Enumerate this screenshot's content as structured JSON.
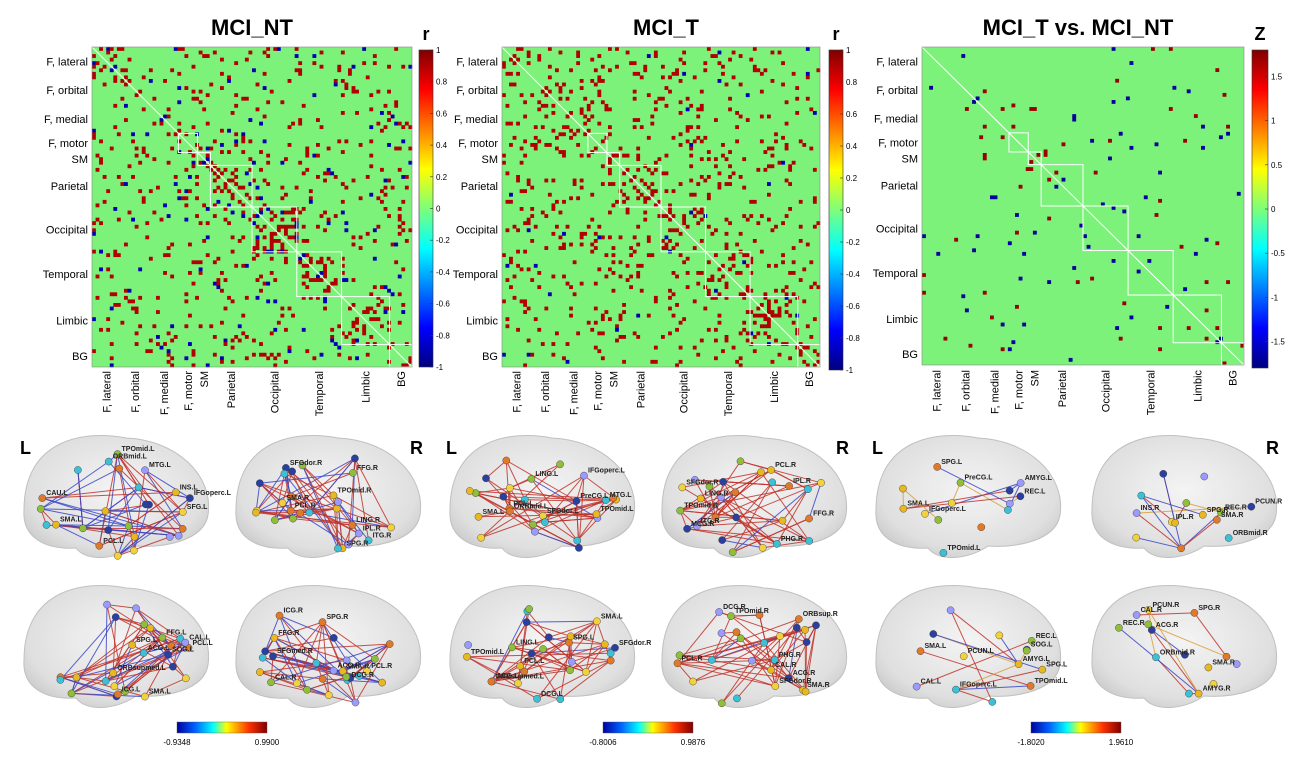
{
  "figure": {
    "type": "connectivity-figure"
  },
  "chart_data": [
    {
      "type": "heatmap",
      "id": "mci_nt",
      "title": "MCI_NT",
      "colorbar_label": "r",
      "colorbar_ticks": [
        "1",
        "0.8",
        "0.6",
        "0.4",
        "0.2",
        "0",
        "-0.2",
        "-0.4",
        "-0.6",
        "-0.8",
        "-1"
      ],
      "value_range": [
        -1,
        1
      ],
      "y_module_labels": [
        "F, lateral",
        "F, orbital",
        "F, medial",
        "F, motor",
        "SM",
        "Parietal",
        "Occipital",
        "Temporal",
        "Limbic",
        "BG"
      ],
      "x_module_labels": [
        "F, lateral",
        "F, orbital",
        "F, medial",
        "F, motor",
        "SM",
        "Parietal",
        "Occipital",
        "Temporal",
        "Limbic",
        "BG"
      ],
      "background_value": 0,
      "positive_value": 0.9,
      "negative_value": -0.9
    },
    {
      "type": "heatmap",
      "id": "mci_t",
      "title": "MCI_T",
      "colorbar_label": "r",
      "colorbar_ticks": [
        "1",
        "0.8",
        "0.6",
        "0.4",
        "0.2",
        "0",
        "-0.2",
        "-0.4",
        "-0.6",
        "-0.8",
        "-1"
      ],
      "value_range": [
        -1,
        1
      ],
      "y_module_labels": [
        "F, lateral",
        "F, orbital",
        "F, medial",
        "F, motor",
        "SM",
        "Parietal",
        "Occipital",
        "Temporal",
        "Limbic",
        "BG"
      ],
      "x_module_labels": [
        "F, lateral",
        "F, orbital",
        "F, medial",
        "F, motor",
        "SM",
        "Parietal",
        "Occipital",
        "Temporal",
        "Limbic",
        "BG"
      ],
      "background_value": 0,
      "positive_value": 0.9,
      "negative_value": -0.9
    },
    {
      "type": "heatmap",
      "id": "mci_diff",
      "title": "MCI_T vs. MCI_NT",
      "colorbar_label": "Z",
      "colorbar_ticks": [
        "1.5",
        "1",
        "0.5",
        "0",
        "-0.5",
        "-1",
        "-1.5"
      ],
      "value_range": [
        -1.8,
        1.8
      ],
      "y_module_labels": [
        "F, lateral",
        "F, orbital",
        "F, medial",
        "F, motor",
        "SM",
        "Parietal",
        "Occipital",
        "Temporal",
        "Limbic",
        "BG"
      ],
      "x_module_labels": [
        "F, lateral",
        "F, orbital",
        "F, medial",
        "F, motor",
        "SM",
        "Parietal",
        "Occipital",
        "Temporal",
        "Limbic",
        "BG"
      ],
      "background_value": 0,
      "positive_value": 1.7,
      "negative_value": -1.7
    }
  ],
  "brain_panels": [
    {
      "id": "brain_nt",
      "left_letter": "L",
      "right_letter": "R",
      "colorbar_min": "-0.9348",
      "colorbar_max": "0.9900",
      "views": [
        {
          "labels": [
            "SMA.L",
            "PCL.L",
            "SFG.L",
            "IFGoperc.L",
            "MTG.L",
            "ORBmid.L",
            "TPOmid.L",
            "INS.L",
            "CAU.L"
          ]
        },
        {
          "labels": [
            "SPG.R",
            "PCL.R",
            "SMA.R",
            "SFGdor.R",
            "IPL.R",
            "ITG.R",
            "FFG.R",
            "TPOmid.R",
            "LING.R"
          ]
        },
        {
          "labels": [
            "SPG.L",
            "PCL.L",
            "SMA.L",
            "SOG.L",
            "CAL.L",
            "ACG.L",
            "FFG.L",
            "ORBsupmed.L",
            "ICG.L"
          ]
        },
        {
          "labels": [
            "SMA.R",
            "SPG.R",
            "PCL.R",
            "SFGmed.R",
            "ACG.R",
            "DCG.R",
            "CAL.R",
            "FFG.R",
            "ICG.R"
          ]
        }
      ]
    },
    {
      "id": "brain_t",
      "left_letter": "L",
      "right_letter": "R",
      "colorbar_min": "-0.8006",
      "colorbar_max": "0.9876",
      "views": [
        {
          "labels": [
            "SMA.L",
            "PCL.L",
            "SFGdor.L",
            "PreCG.L",
            "IFGoperc.L",
            "MTG.L",
            "LING.L",
            "TPOmid.L",
            "ORBmid.L"
          ]
        },
        {
          "labels": [
            "PCL.R",
            "IPL.R",
            "SFGdor.R",
            "MCG.R",
            "ITG.R",
            "PHG.R",
            "TPOmid.R",
            "LING.R",
            "FFG.R"
          ]
        },
        {
          "labels": [
            "PCL.L",
            "SPG.L",
            "SMA.L",
            "SFGdor.R",
            "ACG.L",
            "DCG.L",
            "LING.L",
            "TPOmid.L",
            "ORBsupmed.L"
          ]
        },
        {
          "labels": [
            "SMA.R",
            "PCL.R",
            "SFGdor.R",
            "ACG.R",
            "DCG.R",
            "PHG.R",
            "TPOmid.R",
            "CAL.R",
            "ORBsup.R"
          ]
        }
      ]
    },
    {
      "id": "brain_diff",
      "left_letter": "L",
      "right_letter": "R",
      "colorbar_min": "-1.8020",
      "colorbar_max": "1.9610",
      "views": [
        {
          "labels": [
            "SMA.L",
            "SPG.L",
            "IFGoperc.L",
            "REC.L",
            "AMYG.L",
            "TPOmid.L",
            "PreCG.L"
          ]
        },
        {
          "labels": [
            "SPG.R",
            "SMA.R",
            "IPL.R",
            "PCUN.R",
            "INS.R",
            "ORBmid.R",
            "REC.R"
          ]
        },
        {
          "labels": [
            "SPG.L",
            "SMA.L",
            "PCUN.L",
            "SOG.L",
            "CAL.L",
            "IFGoperc.L",
            "REC.L",
            "AMYG.L",
            "TPOmid.L"
          ]
        },
        {
          "labels": [
            "SMA.R",
            "SPG.R",
            "PCUN.R",
            "ACG.R",
            "CAL.R",
            "ORBmid.R",
            "REC.R",
            "AMYG.R"
          ]
        }
      ]
    }
  ],
  "colors": {
    "background": "#7df27b",
    "positive": "#c81109",
    "negative": "#1430d8",
    "edge_positive": "#c0332b",
    "edge_negative": "#3a46c8"
  }
}
